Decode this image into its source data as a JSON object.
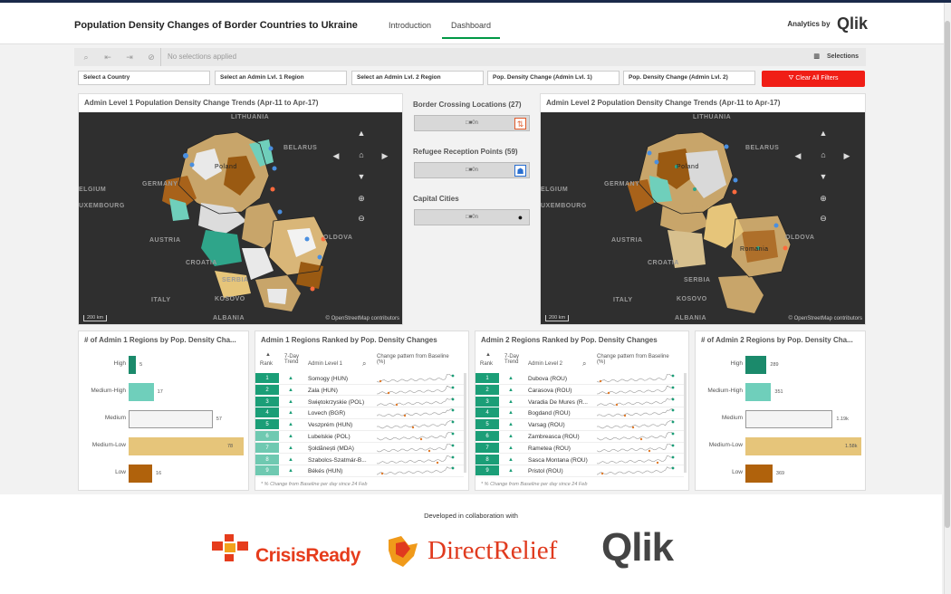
{
  "header": {
    "title": "Population Density Changes of Border Countries to Ukraine",
    "tabs": [
      "Introduction",
      "Dashboard"
    ],
    "brand_prefix": "Analytics by",
    "brand_logo": "Qlik",
    "accent_color": "#009845"
  },
  "toolbar": {
    "no_selections": "No selections applied",
    "selections_label": "Selections",
    "icons": [
      "smart-search-icon",
      "step-back-icon",
      "step-forward-icon",
      "clear-selections-icon"
    ]
  },
  "filters": [
    "Select a Country",
    "Select an Admin Lvl. 1 Region",
    "Select an Admin Lvl. 2 Region",
    "Pop. Density Change (Admin Lvl. 1)",
    "Pop. Density Change (Admin Lvl. 2)"
  ],
  "clear_filters_label": "Clear All Filters",
  "maps": [
    {
      "title": "Admin Level 1 Population Density Change Trends (Apr-11 to Apr-17)",
      "labels": [
        "LITHUANIA",
        "BELARUS",
        "GERMANY",
        "ELGIUM",
        "UXEMBOURG",
        "AUSTRIA",
        "CROATIA",
        "SERBIA",
        "ITALY",
        "KOSOVO",
        "ALBANIA",
        "OLDOVA",
        "Poland"
      ],
      "scale": "200 km",
      "credit": "© OpenStreetMap contributors"
    },
    {
      "title": "Admin Level 2 Population Density Change Trends (Apr-11 to Apr-17)",
      "labels": [
        "LITHUANIA",
        "BELARUS",
        "GERMANY",
        "ELGIUM",
        "UXEMBOURG",
        "AUSTRIA",
        "CROATIA",
        "SERBIA",
        "ITALY",
        "KOSOVO",
        "ALBANIA",
        "OLDOVA",
        "Poland",
        "Romania"
      ],
      "scale": "200 km",
      "credit": "© OpenStreetMap contributors"
    }
  ],
  "layers": [
    {
      "title": "Border Crossing Locations (27)",
      "value": "□■0n",
      "icon": "border-crossing-icon"
    },
    {
      "title": "Refugee Reception Points (59)",
      "value": "□■0n",
      "icon": "refugee-icon"
    },
    {
      "title": "Capital Cities",
      "value": "□■0n",
      "icon": "map-pin-icon"
    }
  ],
  "bar_charts": [
    {
      "title": "# of Admin 1 Regions by Pop. Density Cha...",
      "categories": [
        "High",
        "Medium-High",
        "Medium",
        "Medium-Low",
        "Low"
      ],
      "values": [
        5,
        17,
        57,
        78,
        16
      ],
      "value_labels": [
        "5",
        "17",
        "57",
        "78",
        "16"
      ],
      "max": 78,
      "colors": [
        "#1b8a6b",
        "#6fcfbb",
        "#f4f4f4",
        "#e6c57a",
        "#b0620c"
      ]
    },
    {
      "title": "# of Admin 2 Regions by Pop. Density Cha...",
      "categories": [
        "High",
        "Medium-High",
        "Medium",
        "Medium-Low",
        "Low"
      ],
      "values": [
        289,
        351,
        1190,
        1580,
        369
      ],
      "value_labels": [
        "289",
        "351",
        "1.19k",
        "1.58k",
        "369"
      ],
      "max": 1580,
      "colors": [
        "#1b8a6b",
        "#6fcfbb",
        "#f4f4f4",
        "#e6c57a",
        "#b0620c"
      ]
    }
  ],
  "tables": [
    {
      "title": "Admin 1 Regions Ranked by Pop. Density Changes",
      "headers": [
        "Rank",
        "7-Day Trend",
        "Admin Level 1",
        "Change pattern from Baseline (%)"
      ],
      "rows": [
        {
          "rank": "1",
          "name": "Somogy (HUN)"
        },
        {
          "rank": "2",
          "name": "Zala (HUN)"
        },
        {
          "rank": "3",
          "name": "Świętokrzyskie (POL)"
        },
        {
          "rank": "4",
          "name": "Lovech (BGR)"
        },
        {
          "rank": "5",
          "name": "Veszprém (HUN)"
        },
        {
          "rank": "6",
          "name": "Lubelskie (POL)"
        },
        {
          "rank": "7",
          "name": "Şoldănești (MDA)"
        },
        {
          "rank": "8",
          "name": "Szabolcs-Szatmár-B..."
        },
        {
          "rank": "9",
          "name": "Békés (HUN)"
        }
      ],
      "footnote": "* % Change from Baseline per day since 24 Feb"
    },
    {
      "title": "Admin 2 Regions Ranked by Pop. Density Changes",
      "headers": [
        "Rank",
        "7-Day Trend",
        "Admin Level 2",
        "Change pattern from Baseline (%)"
      ],
      "rows": [
        {
          "rank": "1",
          "name": "Dubova (ROU)"
        },
        {
          "rank": "2",
          "name": "Carasova (ROU)"
        },
        {
          "rank": "3",
          "name": "Varadia De Mures (R..."
        },
        {
          "rank": "4",
          "name": "Bogdand (ROU)"
        },
        {
          "rank": "5",
          "name": "Varsag (ROU)"
        },
        {
          "rank": "6",
          "name": "Zambreasca (ROU)"
        },
        {
          "rank": "7",
          "name": "Rametea (ROU)"
        },
        {
          "rank": "8",
          "name": "Sasca Montana (ROU)"
        },
        {
          "rank": "9",
          "name": "Pristol (ROU)"
        }
      ],
      "footnote": "* % Change from Baseline per day since 24 Feb"
    }
  ],
  "footer": {
    "collab_text": "Developed in collaboration with",
    "logos": [
      "CrisisReady",
      "DirectRelief",
      "Qlik"
    ]
  }
}
